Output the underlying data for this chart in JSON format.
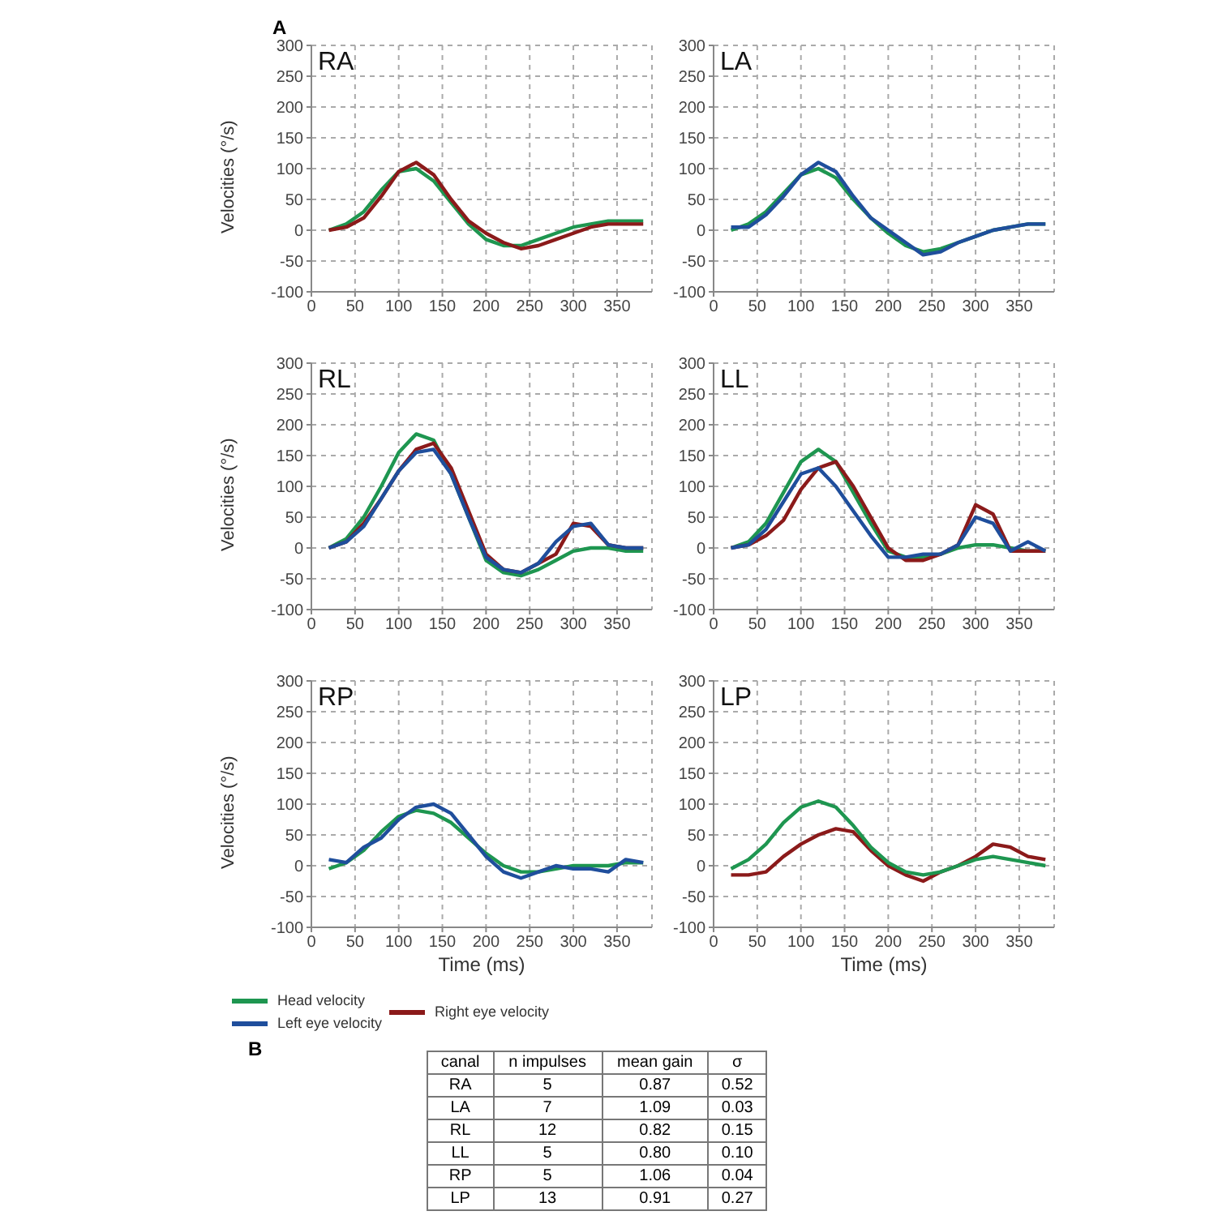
{
  "chart_data": [
    {
      "type": "line",
      "title": "RA",
      "annotations": [
        "A"
      ],
      "ylabel": "Velocities (°/s)",
      "x": [
        20,
        40,
        60,
        80,
        100,
        120,
        140,
        160,
        180,
        200,
        220,
        240,
        260,
        280,
        300,
        320,
        340,
        360,
        380
      ],
      "xlim": [
        0,
        390
      ],
      "xticks": [
        0,
        50,
        100,
        150,
        200,
        250,
        300,
        350
      ],
      "ylim": [
        -100,
        300
      ],
      "yticks": [
        -100,
        -50,
        0,
        50,
        100,
        150,
        200,
        250,
        300
      ],
      "grid": true,
      "marker": "none",
      "series": [
        {
          "color": "#1e9650",
          "values": [
            0,
            10,
            30,
            65,
            95,
            100,
            80,
            45,
            10,
            -15,
            -25,
            -25,
            -15,
            -5,
            5,
            10,
            15,
            15,
            15
          ]
        },
        {
          "color": "#8b1a1a",
          "values": [
            0,
            5,
            20,
            55,
            95,
            110,
            90,
            50,
            15,
            -5,
            -20,
            -30,
            -25,
            -15,
            -5,
            5,
            10,
            10,
            10
          ]
        }
      ]
    },
    {
      "type": "line",
      "title": "LA",
      "x": [
        20,
        40,
        60,
        80,
        100,
        120,
        140,
        160,
        180,
        200,
        220,
        240,
        260,
        280,
        300,
        320,
        340,
        360,
        380
      ],
      "xlim": [
        0,
        390
      ],
      "xticks": [
        0,
        50,
        100,
        150,
        200,
        250,
        300,
        350
      ],
      "ylim": [
        -100,
        300
      ],
      "yticks": [
        -100,
        -50,
        0,
        50,
        100,
        150,
        200,
        250,
        300
      ],
      "grid": true,
      "marker": "none",
      "series": [
        {
          "color": "#1e9650",
          "values": [
            0,
            10,
            30,
            60,
            90,
            100,
            85,
            50,
            20,
            -5,
            -25,
            -35,
            -30,
            -20,
            -10,
            0,
            5,
            10,
            10
          ]
        },
        {
          "color": "#1f4e9c",
          "values": [
            5,
            5,
            25,
            55,
            90,
            110,
            95,
            55,
            20,
            0,
            -20,
            -40,
            -35,
            -20,
            -10,
            0,
            5,
            10,
            10
          ]
        }
      ]
    },
    {
      "type": "line",
      "title": "RL",
      "ylabel": "Velocities (°/s)",
      "x": [
        20,
        40,
        60,
        80,
        100,
        120,
        140,
        160,
        180,
        200,
        220,
        240,
        260,
        280,
        300,
        320,
        340,
        360,
        380
      ],
      "xlim": [
        0,
        390
      ],
      "xticks": [
        0,
        50,
        100,
        150,
        200,
        250,
        300,
        350
      ],
      "ylim": [
        -100,
        300
      ],
      "yticks": [
        -100,
        -50,
        0,
        50,
        100,
        150,
        200,
        250,
        300
      ],
      "grid": true,
      "marker": "none",
      "series": [
        {
          "color": "#1e9650",
          "values": [
            0,
            15,
            50,
            100,
            155,
            185,
            175,
            120,
            50,
            -20,
            -40,
            -45,
            -35,
            -20,
            -5,
            0,
            0,
            -5,
            -5
          ]
        },
        {
          "color": "#8b1a1a",
          "values": [
            0,
            10,
            40,
            80,
            125,
            160,
            170,
            130,
            60,
            -10,
            -35,
            -40,
            -25,
            -10,
            40,
            35,
            5,
            0,
            0
          ]
        },
        {
          "color": "#1f4e9c",
          "values": [
            0,
            10,
            35,
            80,
            125,
            155,
            160,
            120,
            50,
            -15,
            -35,
            -40,
            -25,
            10,
            35,
            40,
            5,
            0,
            0
          ]
        }
      ]
    },
    {
      "type": "line",
      "title": "LL",
      "x": [
        20,
        40,
        60,
        80,
        100,
        120,
        140,
        160,
        180,
        200,
        220,
        240,
        260,
        280,
        300,
        320,
        340,
        360,
        380
      ],
      "xlim": [
        0,
        390
      ],
      "xticks": [
        0,
        50,
        100,
        150,
        200,
        250,
        300,
        350
      ],
      "ylim": [
        -100,
        300
      ],
      "yticks": [
        -100,
        -50,
        0,
        50,
        100,
        150,
        200,
        250,
        300
      ],
      "grid": true,
      "marker": "none",
      "series": [
        {
          "color": "#1e9650",
          "values": [
            0,
            10,
            40,
            90,
            140,
            160,
            140,
            90,
            40,
            -5,
            -15,
            -15,
            -10,
            0,
            5,
            5,
            0,
            -5,
            -5
          ]
        },
        {
          "color": "#8b1a1a",
          "values": [
            0,
            5,
            20,
            45,
            95,
            130,
            140,
            100,
            50,
            0,
            -20,
            -20,
            -10,
            5,
            70,
            55,
            -5,
            -5,
            -5
          ]
        },
        {
          "color": "#1f4e9c",
          "values": [
            0,
            5,
            30,
            75,
            120,
            130,
            100,
            60,
            20,
            -15,
            -15,
            -10,
            -10,
            5,
            50,
            40,
            -5,
            10,
            -5
          ]
        }
      ]
    },
    {
      "type": "line",
      "title": "RP",
      "ylabel": "Velocities (°/s)",
      "xlabel": "Time (ms)",
      "legend": "bottom",
      "x": [
        20,
        40,
        60,
        80,
        100,
        120,
        140,
        160,
        180,
        200,
        220,
        240,
        260,
        280,
        300,
        320,
        340,
        360,
        380
      ],
      "xlim": [
        0,
        390
      ],
      "xticks": [
        0,
        50,
        100,
        150,
        200,
        250,
        300,
        350
      ],
      "ylim": [
        -100,
        300
      ],
      "yticks": [
        -100,
        -50,
        0,
        50,
        100,
        150,
        200,
        250,
        300
      ],
      "grid": true,
      "marker": "none",
      "series": [
        {
          "name": "Head velocity",
          "color": "#1e9650",
          "values": [
            -5,
            5,
            25,
            55,
            80,
            90,
            85,
            70,
            45,
            20,
            0,
            -10,
            -10,
            -5,
            0,
            0,
            0,
            5,
            5
          ]
        },
        {
          "name": "Left eye velocity",
          "color": "#1f4e9c",
          "values": [
            10,
            5,
            30,
            45,
            75,
            95,
            100,
            85,
            50,
            15,
            -10,
            -20,
            -10,
            0,
            -5,
            -5,
            -10,
            10,
            5
          ]
        }
      ]
    },
    {
      "type": "line",
      "title": "LP",
      "xlabel": "Time (ms)",
      "legend": "bottom",
      "x": [
        20,
        40,
        60,
        80,
        100,
        120,
        140,
        160,
        180,
        200,
        220,
        240,
        260,
        280,
        300,
        320,
        340,
        360,
        380
      ],
      "xlim": [
        0,
        390
      ],
      "xticks": [
        0,
        50,
        100,
        150,
        200,
        250,
        300,
        350
      ],
      "ylim": [
        -100,
        300
      ],
      "yticks": [
        -100,
        -50,
        0,
        50,
        100,
        150,
        200,
        250,
        300
      ],
      "grid": true,
      "marker": "none",
      "series": [
        {
          "name": "Right eye velocity",
          "color": "#8b1a1a",
          "values": [
            -15,
            -15,
            -10,
            15,
            35,
            50,
            60,
            55,
            25,
            0,
            -15,
            -25,
            -10,
            0,
            15,
            35,
            30,
            15,
            10
          ]
        },
        {
          "color": "#1e9650",
          "values": [
            -5,
            10,
            35,
            70,
            95,
            105,
            95,
            65,
            30,
            5,
            -10,
            -15,
            -10,
            0,
            10,
            15,
            10,
            5,
            0
          ]
        }
      ]
    },
    {
      "type": "other",
      "annotations": [
        "B"
      ],
      "categories": [
        "canal",
        "n impulses",
        "mean gain",
        "σ"
      ],
      "y_categories": [
        "RA",
        "LA",
        "RL",
        "LL",
        "RP",
        "LP"
      ],
      "cell_labels": [
        [
          "5",
          "0.87",
          "0.52"
        ],
        [
          "7",
          "1.09",
          "0.03"
        ],
        [
          "12",
          "0.82",
          "0.15"
        ],
        [
          "5",
          "0.80",
          "0.10"
        ],
        [
          "5",
          "1.06",
          "0.04"
        ],
        [
          "13",
          "0.91",
          "0.27"
        ]
      ]
    }
  ]
}
